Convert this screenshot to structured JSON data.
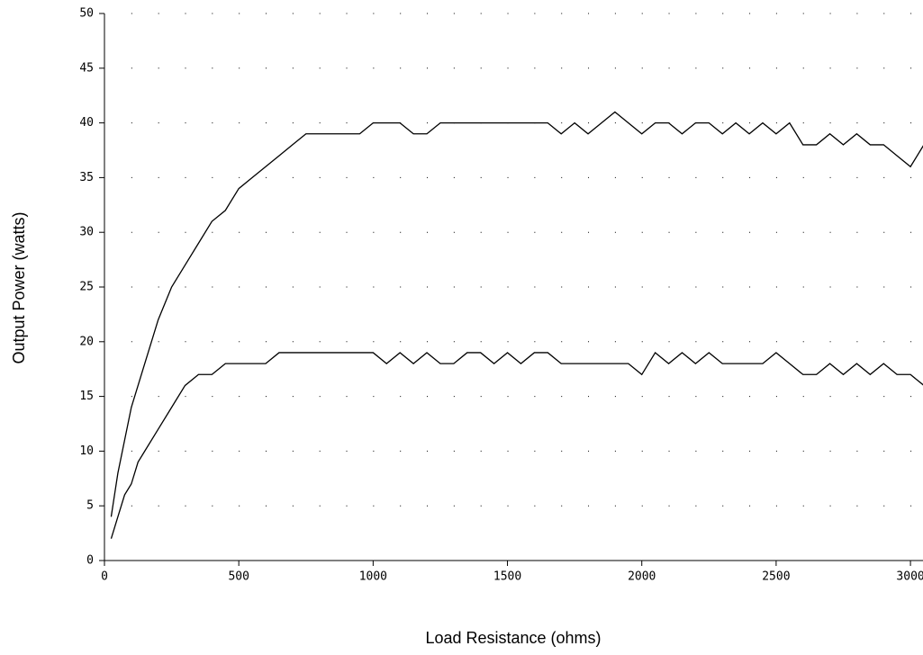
{
  "chart_data": {
    "type": "line",
    "x_label": "Load Resistance (ohms)",
    "y_label": "Output Power (watts)",
    "x": [
      25,
      50,
      75,
      100,
      125,
      150,
      200,
      250,
      300,
      350,
      400,
      450,
      500,
      550,
      600,
      650,
      700,
      750,
      800,
      850,
      900,
      950,
      1000,
      1050,
      1100,
      1150,
      1200,
      1250,
      1300,
      1350,
      1400,
      1450,
      1500,
      1550,
      1600,
      1650,
      1700,
      1750,
      1800,
      1850,
      1900,
      1950,
      2000,
      2050,
      2100,
      2150,
      2200,
      2250,
      2300,
      2350,
      2400,
      2450,
      2500,
      2550,
      2600,
      2650,
      2700,
      2750,
      2800,
      2850,
      2900,
      2950,
      3000,
      3050
    ],
    "series": [
      {
        "color": "#000000",
        "values": [
          4,
          8,
          11,
          14,
          16,
          18,
          22,
          25,
          27,
          29,
          31,
          32,
          34,
          35,
          36,
          37,
          38,
          39,
          39,
          39,
          39,
          39,
          40,
          40,
          40,
          39,
          39,
          40,
          40,
          40,
          40,
          40,
          40,
          40,
          40,
          40,
          39,
          40,
          39,
          40,
          41,
          40,
          39,
          40,
          40,
          39,
          40,
          40,
          39,
          40,
          39,
          40,
          39,
          40,
          38,
          38,
          39,
          38,
          39,
          38,
          38,
          37,
          36,
          38
        ]
      },
      {
        "color": "#000000",
        "values": [
          2,
          4,
          6,
          7,
          9,
          10,
          12,
          14,
          16,
          17,
          17,
          18,
          18,
          18,
          18,
          19,
          19,
          19,
          19,
          19,
          19,
          19,
          19,
          18,
          19,
          18,
          19,
          18,
          18,
          19,
          19,
          18,
          19,
          18,
          19,
          19,
          18,
          18,
          18,
          18,
          18,
          18,
          17,
          19,
          18,
          19,
          18,
          19,
          18,
          18,
          18,
          18,
          19,
          18,
          17,
          17,
          18,
          17,
          18,
          17,
          18,
          17,
          17,
          16
        ]
      }
    ],
    "xlim": [
      0,
      3050
    ],
    "ylim": [
      0,
      50
    ],
    "xticks": [
      0,
      500,
      1000,
      1500,
      2000,
      2500,
      3000
    ],
    "yticks": [
      0,
      5,
      10,
      15,
      20,
      25,
      30,
      35,
      40,
      45,
      50
    ],
    "grid": true
  }
}
